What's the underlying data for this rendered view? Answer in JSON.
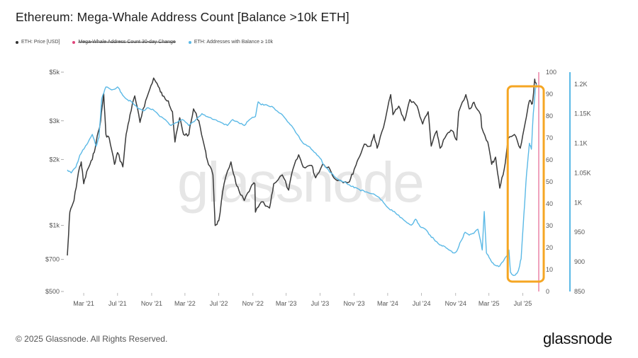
{
  "header": {
    "title": "Ethereum: Mega-Whale Address Count [Balance >10k ETH]"
  },
  "legend": [
    {
      "label": "ETH: Price [USD]",
      "color": "#333333",
      "struck": false
    },
    {
      "label": "Mega-Whale Address Count 30-day Change",
      "color": "#e0457b",
      "struck": true
    },
    {
      "label": "ETH: Addresses with Balance ≥ 10k",
      "color": "#5bb9e6",
      "struck": false
    }
  ],
  "watermark": "glassnode",
  "footer": {
    "copyright": "© 2025 Glassnode. All Rights Reserved.",
    "logo": "glassnode"
  },
  "colors": {
    "price": "#3a3a3a",
    "addresses": "#5bb9e6",
    "highlight": "#f5a623"
  },
  "chart_data": {
    "type": "line",
    "title": "Ethereum: Mega-Whale Address Count [Balance >10k ETH]",
    "x_ticks": [
      "Mar '21",
      "Jul '21",
      "Nov '21",
      "Mar '22",
      "Jul '22",
      "Nov '22",
      "Mar '23",
      "Jul '23",
      "Nov '23",
      "Mar '24",
      "Jul '24",
      "Nov '24",
      "Mar '25",
      "Jul '25"
    ],
    "x_range": [
      "2021-01-01",
      "2025-08-20"
    ],
    "y_left": {
      "scale": "log",
      "range": [
        500,
        5000
      ],
      "ticks": [
        {
          "value": 500,
          "label": "$500"
        },
        {
          "value": 700,
          "label": "$700"
        },
        {
          "value": 1000,
          "label": "$1k"
        },
        {
          "value": 2000,
          "label": "$2k"
        },
        {
          "value": 3000,
          "label": "$3k"
        },
        {
          "value": 5000,
          "label": "$5k"
        }
      ]
    },
    "y_mid": {
      "range": [
        0,
        100
      ],
      "ticks": [
        0,
        10,
        20,
        30,
        40,
        50,
        60,
        70,
        80,
        90,
        100
      ]
    },
    "y_right": {
      "range": [
        850,
        1220
      ],
      "ticks": [
        {
          "value": 850,
          "label": "850"
        },
        {
          "value": 900,
          "label": "900"
        },
        {
          "value": 950,
          "label": "950"
        },
        {
          "value": 1000,
          "label": "1K"
        },
        {
          "value": 1050,
          "label": "1.05K"
        },
        {
          "value": 1100,
          "label": "1.1K"
        },
        {
          "value": 1150,
          "label": "1.15K"
        },
        {
          "value": 1200,
          "label": "1.2K"
        }
      ]
    },
    "grid": false,
    "series": [
      {
        "name": "ETH: Price [USD]",
        "axis": "left",
        "points": [
          [
            "2021-01-01",
            730
          ],
          [
            "2021-01-10",
            1150
          ],
          [
            "2021-01-25",
            1300
          ],
          [
            "2021-02-10",
            1750
          ],
          [
            "2021-02-20",
            1950
          ],
          [
            "2021-03-01",
            1550
          ],
          [
            "2021-03-15",
            1800
          ],
          [
            "2021-04-01",
            2000
          ],
          [
            "2021-04-15",
            2400
          ],
          [
            "2021-05-01",
            3000
          ],
          [
            "2021-05-12",
            4000
          ],
          [
            "2021-05-20",
            2600
          ],
          [
            "2021-06-01",
            2500
          ],
          [
            "2021-06-20",
            1900
          ],
          [
            "2021-07-01",
            2150
          ],
          [
            "2021-07-20",
            1850
          ],
          [
            "2021-08-01",
            2600
          ],
          [
            "2021-08-15",
            3200
          ],
          [
            "2021-09-01",
            3900
          ],
          [
            "2021-09-20",
            2950
          ],
          [
            "2021-10-01",
            3400
          ],
          [
            "2021-10-20",
            4000
          ],
          [
            "2021-11-08",
            4700
          ],
          [
            "2021-11-25",
            4300
          ],
          [
            "2021-12-10",
            3900
          ],
          [
            "2021-12-31",
            3700
          ],
          [
            "2022-01-15",
            3300
          ],
          [
            "2022-01-24",
            2400
          ],
          [
            "2022-02-10",
            3100
          ],
          [
            "2022-02-24",
            2600
          ],
          [
            "2022-03-15",
            2600
          ],
          [
            "2022-04-01",
            3400
          ],
          [
            "2022-04-20",
            3000
          ],
          [
            "2022-05-10",
            2300
          ],
          [
            "2022-05-20",
            2000
          ],
          [
            "2022-06-10",
            1700
          ],
          [
            "2022-06-18",
            1000
          ],
          [
            "2022-07-01",
            1050
          ],
          [
            "2022-07-20",
            1550
          ],
          [
            "2022-08-14",
            1950
          ],
          [
            "2022-09-01",
            1550
          ],
          [
            "2022-09-15",
            1400
          ],
          [
            "2022-10-01",
            1300
          ],
          [
            "2022-10-25",
            1500
          ],
          [
            "2022-11-08",
            1550
          ],
          [
            "2022-11-10",
            1150
          ],
          [
            "2022-12-01",
            1280
          ],
          [
            "2022-12-31",
            1200
          ],
          [
            "2023-01-15",
            1550
          ],
          [
            "2023-02-15",
            1700
          ],
          [
            "2023-03-10",
            1450
          ],
          [
            "2023-03-25",
            1800
          ],
          [
            "2023-04-15",
            2100
          ],
          [
            "2023-05-01",
            1850
          ],
          [
            "2023-06-01",
            1880
          ],
          [
            "2023-06-15",
            1650
          ],
          [
            "2023-07-10",
            1900
          ],
          [
            "2023-08-01",
            1850
          ],
          [
            "2023-08-20",
            1650
          ],
          [
            "2023-09-15",
            1600
          ],
          [
            "2023-10-15",
            1580
          ],
          [
            "2023-11-01",
            1800
          ],
          [
            "2023-11-15",
            2000
          ],
          [
            "2023-12-08",
            2350
          ],
          [
            "2023-12-31",
            2300
          ],
          [
            "2024-01-12",
            2600
          ],
          [
            "2024-01-23",
            2250
          ],
          [
            "2024-02-15",
            2800
          ],
          [
            "2024-03-12",
            3950
          ],
          [
            "2024-03-20",
            3200
          ],
          [
            "2024-04-10",
            3500
          ],
          [
            "2024-04-30",
            3000
          ],
          [
            "2024-05-20",
            3750
          ],
          [
            "2024-06-15",
            3500
          ],
          [
            "2024-07-05",
            2900
          ],
          [
            "2024-07-25",
            3300
          ],
          [
            "2024-08-05",
            2300
          ],
          [
            "2024-08-25",
            2700
          ],
          [
            "2024-09-06",
            2250
          ],
          [
            "2024-09-30",
            2600
          ],
          [
            "2024-10-20",
            2700
          ],
          [
            "2024-11-05",
            2450
          ],
          [
            "2024-11-12",
            3300
          ],
          [
            "2024-12-08",
            3950
          ],
          [
            "2024-12-20",
            3400
          ],
          [
            "2025-01-06",
            3650
          ],
          [
            "2025-01-30",
            3200
          ],
          [
            "2025-02-03",
            2800
          ],
          [
            "2025-02-25",
            2400
          ],
          [
            "2025-03-11",
            1900
          ],
          [
            "2025-03-25",
            2050
          ],
          [
            "2025-04-09",
            1480
          ],
          [
            "2025-04-25",
            1800
          ],
          [
            "2025-05-10",
            2500
          ],
          [
            "2025-06-01",
            2600
          ],
          [
            "2025-06-22",
            2250
          ],
          [
            "2025-07-10",
            2950
          ],
          [
            "2025-07-25",
            3700
          ],
          [
            "2025-08-05",
            3600
          ],
          [
            "2025-08-13",
            4650
          ],
          [
            "2025-08-20",
            4300
          ]
        ]
      },
      {
        "name": "ETH: Addresses with Balance ≥ 10k",
        "axis": "right",
        "points": [
          [
            "2021-01-01",
            1055
          ],
          [
            "2021-01-15",
            1050
          ],
          [
            "2021-02-01",
            1060
          ],
          [
            "2021-02-15",
            1080
          ],
          [
            "2021-03-01",
            1090
          ],
          [
            "2021-03-15",
            1100
          ],
          [
            "2021-04-01",
            1115
          ],
          [
            "2021-04-15",
            1095
          ],
          [
            "2021-04-25",
            1110
          ],
          [
            "2021-05-05",
            1175
          ],
          [
            "2021-05-20",
            1195
          ],
          [
            "2021-06-10",
            1190
          ],
          [
            "2021-07-01",
            1195
          ],
          [
            "2021-07-15",
            1185
          ],
          [
            "2021-08-01",
            1175
          ],
          [
            "2021-08-20",
            1170
          ],
          [
            "2021-09-10",
            1160
          ],
          [
            "2021-10-01",
            1155
          ],
          [
            "2021-10-20",
            1160
          ],
          [
            "2021-11-10",
            1155
          ],
          [
            "2021-12-01",
            1145
          ],
          [
            "2021-12-20",
            1140
          ],
          [
            "2022-01-10",
            1130
          ],
          [
            "2022-02-01",
            1135
          ],
          [
            "2022-02-20",
            1140
          ],
          [
            "2022-03-15",
            1130
          ],
          [
            "2022-04-10",
            1140
          ],
          [
            "2022-05-01",
            1150
          ],
          [
            "2022-05-20",
            1145
          ],
          [
            "2022-06-15",
            1140
          ],
          [
            "2022-07-10",
            1135
          ],
          [
            "2022-08-01",
            1130
          ],
          [
            "2022-08-20",
            1140
          ],
          [
            "2022-09-10",
            1135
          ],
          [
            "2022-10-01",
            1130
          ],
          [
            "2022-10-20",
            1140
          ],
          [
            "2022-11-10",
            1145
          ],
          [
            "2022-11-20",
            1170
          ],
          [
            "2022-12-01",
            1165
          ],
          [
            "2022-12-20",
            1165
          ],
          [
            "2023-01-15",
            1160
          ],
          [
            "2023-02-10",
            1150
          ],
          [
            "2023-03-01",
            1140
          ],
          [
            "2023-03-20",
            1130
          ],
          [
            "2023-04-10",
            1115
          ],
          [
            "2023-05-01",
            1100
          ],
          [
            "2023-05-20",
            1095
          ],
          [
            "2023-06-10",
            1085
          ],
          [
            "2023-07-01",
            1075
          ],
          [
            "2023-07-20",
            1060
          ],
          [
            "2023-08-10",
            1050
          ],
          [
            "2023-09-01",
            1040
          ],
          [
            "2023-09-20",
            1035
          ],
          [
            "2023-10-15",
            1030
          ],
          [
            "2023-11-01",
            1025
          ],
          [
            "2023-11-20",
            1022
          ],
          [
            "2023-12-10",
            1018
          ],
          [
            "2024-01-05",
            1015
          ],
          [
            "2024-01-25",
            1010
          ],
          [
            "2024-02-15",
            1000
          ],
          [
            "2024-03-05",
            990
          ],
          [
            "2024-03-25",
            985
          ],
          [
            "2024-04-15",
            975
          ],
          [
            "2024-05-05",
            968
          ],
          [
            "2024-05-25",
            962
          ],
          [
            "2024-06-10",
            972
          ],
          [
            "2024-06-25",
            960
          ],
          [
            "2024-07-15",
            955
          ],
          [
            "2024-08-01",
            945
          ],
          [
            "2024-08-20",
            935
          ],
          [
            "2024-09-10",
            928
          ],
          [
            "2024-09-25",
            925
          ],
          [
            "2024-10-10",
            920
          ],
          [
            "2024-10-25",
            915
          ],
          [
            "2024-11-05",
            918
          ],
          [
            "2024-11-20",
            935
          ],
          [
            "2024-12-05",
            950
          ],
          [
            "2024-12-20",
            945
          ],
          [
            "2025-01-05",
            948
          ],
          [
            "2025-01-20",
            955
          ],
          [
            "2025-01-30",
            935
          ],
          [
            "2025-02-05",
            920
          ],
          [
            "2025-02-12",
            985
          ],
          [
            "2025-02-20",
            915
          ],
          [
            "2025-03-05",
            905
          ],
          [
            "2025-03-20",
            895
          ],
          [
            "2025-04-05",
            892
          ],
          [
            "2025-04-20",
            900
          ],
          [
            "2025-05-05",
            910
          ],
          [
            "2025-05-12",
            920
          ],
          [
            "2025-05-18",
            882
          ],
          [
            "2025-05-25",
            878
          ],
          [
            "2025-06-05",
            878
          ],
          [
            "2025-06-15",
            885
          ],
          [
            "2025-06-25",
            905
          ],
          [
            "2025-07-05",
            980
          ],
          [
            "2025-07-15",
            1050
          ],
          [
            "2025-07-25",
            1100
          ],
          [
            "2025-08-01",
            1090
          ],
          [
            "2025-08-08",
            1150
          ],
          [
            "2025-08-15",
            1190
          ],
          [
            "2025-08-20",
            1200
          ]
        ]
      }
    ],
    "annotations": [
      {
        "type": "highlight-box",
        "from": "2025-05-18",
        "to": "2025-08-20",
        "color": "#f5a623"
      }
    ]
  }
}
